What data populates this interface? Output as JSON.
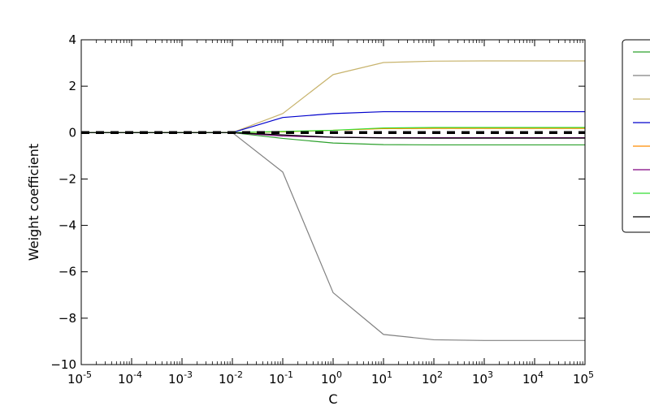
{
  "chart_data": {
    "type": "line",
    "title": "",
    "xlabel": "C",
    "ylabel": "Weight coefficient",
    "x_scale": "log",
    "x": [
      1e-05,
      0.0001,
      0.001,
      0.01,
      0.1,
      1,
      10,
      100,
      1000,
      10000,
      100000
    ],
    "xlim": [
      1e-05,
      100000
    ],
    "ylim": [
      -10,
      4
    ],
    "x_ticks": [
      {
        "base": "10",
        "exp": "-5"
      },
      {
        "base": "10",
        "exp": "-4"
      },
      {
        "base": "10",
        "exp": "-3"
      },
      {
        "base": "10",
        "exp": "-2"
      },
      {
        "base": "10",
        "exp": "-1"
      },
      {
        "base": "10",
        "exp": "0"
      },
      {
        "base": "10",
        "exp": "1"
      },
      {
        "base": "10",
        "exp": "2"
      },
      {
        "base": "10",
        "exp": "3"
      },
      {
        "base": "10",
        "exp": "4"
      },
      {
        "base": "10",
        "exp": "5"
      }
    ],
    "y_ticks": [
      {
        "value": 4,
        "label": "4"
      },
      {
        "value": 2,
        "label": "2"
      },
      {
        "value": 0,
        "label": "0"
      },
      {
        "value": -2,
        "label": "−2"
      },
      {
        "value": -4,
        "label": "−4"
      },
      {
        "value": -6,
        "label": "−6"
      },
      {
        "value": -8,
        "label": "−8"
      },
      {
        "value": -10,
        "label": "−10"
      }
    ],
    "reference_line": {
      "y": 0,
      "color": "#000000",
      "style": "dashed"
    },
    "grid": false,
    "legend_position": "right, outside plot (clipped)",
    "series": [
      {
        "color": "#2ca02c",
        "values": [
          0,
          0,
          0,
          0,
          -0.25,
          -0.45,
          -0.52,
          -0.53,
          -0.53,
          -0.53,
          -0.53
        ]
      },
      {
        "color": "#808080",
        "values": [
          0,
          0,
          0,
          0,
          -1.7,
          -6.9,
          -8.7,
          -8.93,
          -8.96,
          -8.96,
          -8.96
        ]
      },
      {
        "color": "#c8b46e",
        "values": [
          0,
          0,
          0,
          0,
          0.82,
          2.5,
          3.02,
          3.08,
          3.09,
          3.09,
          3.09
        ]
      },
      {
        "color": "#0000cc",
        "values": [
          0,
          0,
          0,
          0,
          0.65,
          0.82,
          0.9,
          0.9,
          0.9,
          0.9,
          0.9
        ]
      },
      {
        "color": "#ff8c00",
        "values": [
          0,
          0,
          0,
          0,
          0.03,
          0.1,
          0.17,
          0.18,
          0.18,
          0.18,
          0.18
        ]
      },
      {
        "color": "#800080",
        "values": [
          0,
          0,
          0,
          0,
          -0.15,
          -0.2,
          -0.22,
          -0.22,
          -0.22,
          -0.22,
          -0.22
        ]
      },
      {
        "color": "#33dd33",
        "values": [
          0,
          0,
          0,
          0,
          0.05,
          0.1,
          0.2,
          0.22,
          0.22,
          0.22,
          0.22
        ]
      },
      {
        "color": "#000000",
        "values": [
          0,
          0,
          0,
          0,
          -0.1,
          -0.2,
          -0.23,
          -0.24,
          -0.24,
          -0.24,
          -0.24
        ]
      }
    ]
  }
}
